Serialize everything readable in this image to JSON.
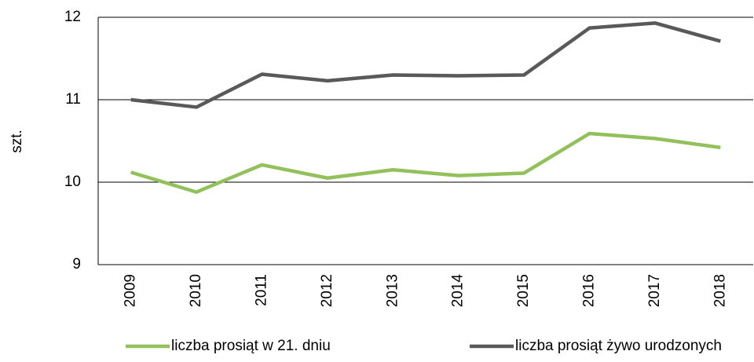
{
  "chart_data": {
    "type": "line",
    "y_label": "szt.",
    "categories": [
      "2009",
      "2010",
      "2011",
      "2012",
      "2013",
      "2014",
      "2015",
      "2016",
      "2017",
      "2018"
    ],
    "series": [
      {
        "name": "liczba prosiąt w 21. dniu",
        "color": "#92c05a",
        "values": [
          10.12,
          9.88,
          10.21,
          10.05,
          10.15,
          10.08,
          10.11,
          10.59,
          10.53,
          10.42
        ]
      },
      {
        "name": "liczba prosiąt żywo urodzonych",
        "color": "#595959",
        "values": [
          11.0,
          10.91,
          11.31,
          11.23,
          11.3,
          11.29,
          11.3,
          11.87,
          11.93,
          11.71
        ]
      }
    ],
    "ylim": [
      9,
      12
    ],
    "yticks": [
      9,
      10,
      11,
      12
    ],
    "grid": true
  }
}
